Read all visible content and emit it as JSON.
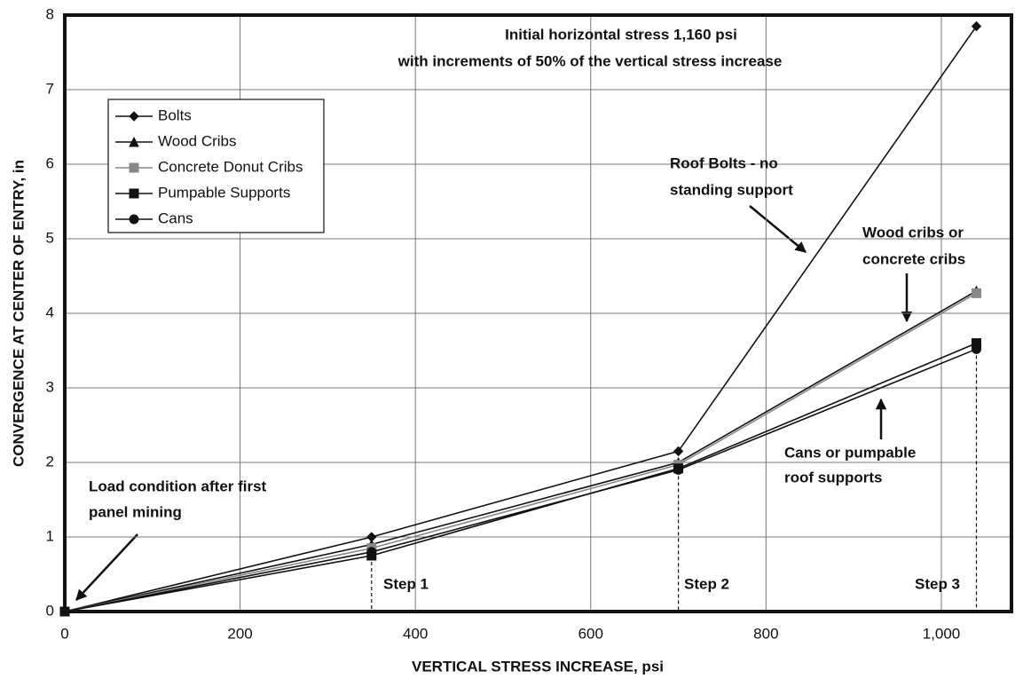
{
  "chart_data": {
    "type": "line",
    "x_label": "VERTICAL STRESS INCREASE, psi",
    "y_label": "CONVERGENCE AT CENTER OF ENTRY, in",
    "x": [
      0,
      350,
      700,
      1040
    ],
    "series": [
      {
        "name": "Bolts",
        "color": "#111111",
        "marker": "diamond",
        "values": [
          0,
          1.0,
          2.15,
          7.85
        ]
      },
      {
        "name": "Wood Cribs",
        "color": "#111111",
        "marker": "triangle",
        "values": [
          0,
          0.9,
          2.0,
          4.3
        ]
      },
      {
        "name": "Concrete Donut Cribs",
        "color": "#888888",
        "marker": "square",
        "values": [
          0,
          0.85,
          1.97,
          4.27
        ]
      },
      {
        "name": "Pumpable Supports",
        "color": "#111111",
        "marker": "square",
        "values": [
          0,
          0.75,
          1.92,
          3.6
        ]
      },
      {
        "name": "Cans",
        "color": "#111111",
        "marker": "circle",
        "values": [
          0,
          0.8,
          1.9,
          3.52
        ]
      }
    ],
    "xlim": [
      0,
      1080
    ],
    "ylim": [
      0,
      8
    ],
    "xticks": [
      0,
      200,
      400,
      600,
      800,
      {
        "value": 1000,
        "label": "1,000"
      }
    ],
    "yticks": [
      0,
      1,
      2,
      3,
      4,
      5,
      6,
      7,
      8
    ],
    "grid": true,
    "legend": "upper left",
    "annotations": [
      "Initial horizontal stress 1,160 psi",
      "with increments of 50% of the vertical stress increase",
      "Roof Bolts - no",
      "standing support",
      "Wood cribs or",
      "concrete cribs",
      "Cans or pumpable",
      "roof supports",
      "Load condition after first",
      "panel mining",
      "Step 1",
      "Step 2",
      "Step 3"
    ]
  }
}
